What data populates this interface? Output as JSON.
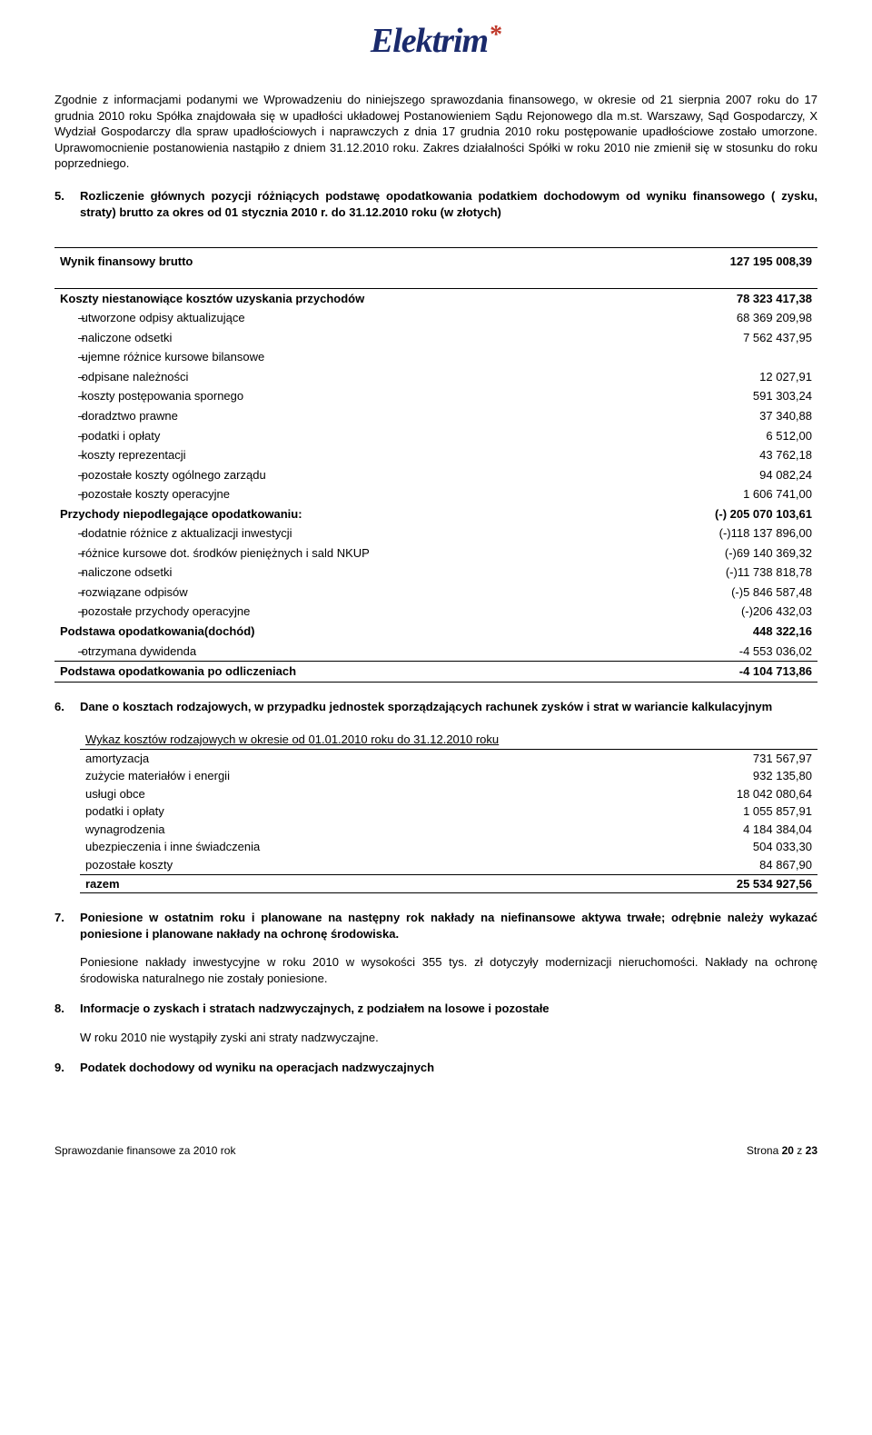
{
  "logo": {
    "text": "Elektrim",
    "star": "*"
  },
  "intro": "Zgodnie z informacjami podanymi we Wprowadzeniu do niniejszego sprawozdania finansowego, w okresie od 21 sierpnia 2007 roku do 17 grudnia 2010 roku Spółka znajdowała się w upadłości układowej Postanowieniem Sądu Rejonowego dla m.st. Warszawy, Sąd Gospodarczy, X Wydział Gospodarczy dla spraw upadłościowych i naprawczych z dnia 17 grudnia 2010 roku postępowanie upadłościowe zostało umorzone. Uprawomocnienie postanowienia nastąpiło z dniem 31.12.2010 roku. Zakres działalności Spółki w roku 2010 nie zmienił się w stosunku do roku poprzedniego.",
  "s5": {
    "num": "5.",
    "title": "Rozliczenie głównych pozycji różniących podstawę opodatkowania podatkiem dochodowym od wyniku finansowego ( zysku, straty) brutto za okres  od 01 stycznia 2010 r. do 31.12.2010 roku (w złotych)",
    "rows": [
      {
        "type": "head",
        "label": "Wynik finansowy brutto",
        "value": "127 195 008,39"
      },
      {
        "type": "sub",
        "label": "Koszty niestanowiące kosztów uzyskania przychodów",
        "value": "78 323 417,38"
      },
      {
        "type": "item",
        "label": "utworzone odpisy aktualizujące",
        "value": "68 369 209,98"
      },
      {
        "type": "item",
        "label": "naliczone odsetki",
        "value": "7 562 437,95"
      },
      {
        "type": "item",
        "label": "ujemne różnice kursowe bilansowe",
        "value": ""
      },
      {
        "type": "item",
        "label": "odpisane należności",
        "value": "12 027,91"
      },
      {
        "type": "item",
        "label": "koszty postępowania spornego",
        "value": "591 303,24"
      },
      {
        "type": "item",
        "label": "doradztwo prawne",
        "value": "37 340,88"
      },
      {
        "type": "item",
        "label": "podatki i opłaty",
        "value": "6 512,00"
      },
      {
        "type": "item",
        "label": "koszty reprezentacji",
        "value": "43 762,18"
      },
      {
        "type": "item",
        "label": "pozostałe koszty ogólnego zarządu",
        "value": "94 082,24"
      },
      {
        "type": "item",
        "label": "pozostałe koszty operacyjne",
        "value": "1 606 741,00"
      },
      {
        "type": "sub",
        "label": "Przychody niepodlegające opodatkowaniu:",
        "value": "(-) 205 070 103,61"
      },
      {
        "type": "item",
        "label": "dodatnie różnice z aktualizacji inwestycji",
        "value": "(-)118 137 896,00"
      },
      {
        "type": "item",
        "label": "różnice kursowe dot. środków pieniężnych i sald NKUP",
        "value": "(-)69 140 369,32"
      },
      {
        "type": "item",
        "label": "naliczone odsetki",
        "value": "(-)11 738 818,78"
      },
      {
        "type": "item",
        "label": "rozwiązane odpisów",
        "value": "(-)5 846 587,48"
      },
      {
        "type": "item",
        "label": "pozostałe przychody operacyjne",
        "value": "(-)206 432,03"
      },
      {
        "type": "sub",
        "label": "Podstawa opodatkowania(dochód)",
        "value": "448 322,16"
      },
      {
        "type": "item",
        "label": "otrzymana dywidenda",
        "value": "-4 553 036,02"
      },
      {
        "type": "foot",
        "label": "Podstawa opodatkowania po odliczeniach",
        "value": "-4 104 713,86"
      }
    ]
  },
  "s6": {
    "num": "6.",
    "title": "Dane o kosztach rodzajowych, w przypadku jednostek sporządzających rachunek zysków i strat w wariancie kalkulacyjnym",
    "subtitle": "Wykaz kosztów rodzajowych w okresie od 01.01.2010 roku do 31.12.2010 roku",
    "rows": [
      {
        "label": "amortyzacja",
        "value": "731 567,97"
      },
      {
        "label": "zużycie materiałów i energii",
        "value": "932 135,80"
      },
      {
        "label": "usługi obce",
        "value": "18 042 080,64"
      },
      {
        "label": "podatki i opłaty",
        "value": "1 055 857,91"
      },
      {
        "label": "wynagrodzenia",
        "value": "4 184 384,04"
      },
      {
        "label": "ubezpieczenia i inne świadczenia",
        "value": "504 033,30"
      },
      {
        "label": "pozostałe koszty",
        "value": "84 867,90"
      }
    ],
    "sum_label": "razem",
    "sum_value": "25 534 927,56"
  },
  "s7": {
    "num": "7.",
    "title": "Poniesione w ostatnim roku i planowane na następny rok nakłady na niefinansowe aktywa trwałe; odrębnie należy wykazać poniesione i planowane nakłady na ochronę środowiska.",
    "body": "Poniesione nakłady inwestycyjne w roku 2010 w wysokości 355 tys. zł dotyczyły modernizacji nieruchomości. Nakłady na ochronę środowiska naturalnego nie zostały poniesione."
  },
  "s8": {
    "num": "8.",
    "title": "Informacje o zyskach i stratach nadzwyczajnych, z podziałem na losowe i pozostałe",
    "body": "W roku 2010 nie wystąpiły zyski ani straty nadzwyczajne."
  },
  "s9": {
    "num": "9.",
    "title": "Podatek dochodowy od wyniku na operacjach nadzwyczajnych"
  },
  "footer": {
    "left": "Sprawozdanie finansowe za 2010 rok",
    "right": "Strona 20 z 23"
  }
}
